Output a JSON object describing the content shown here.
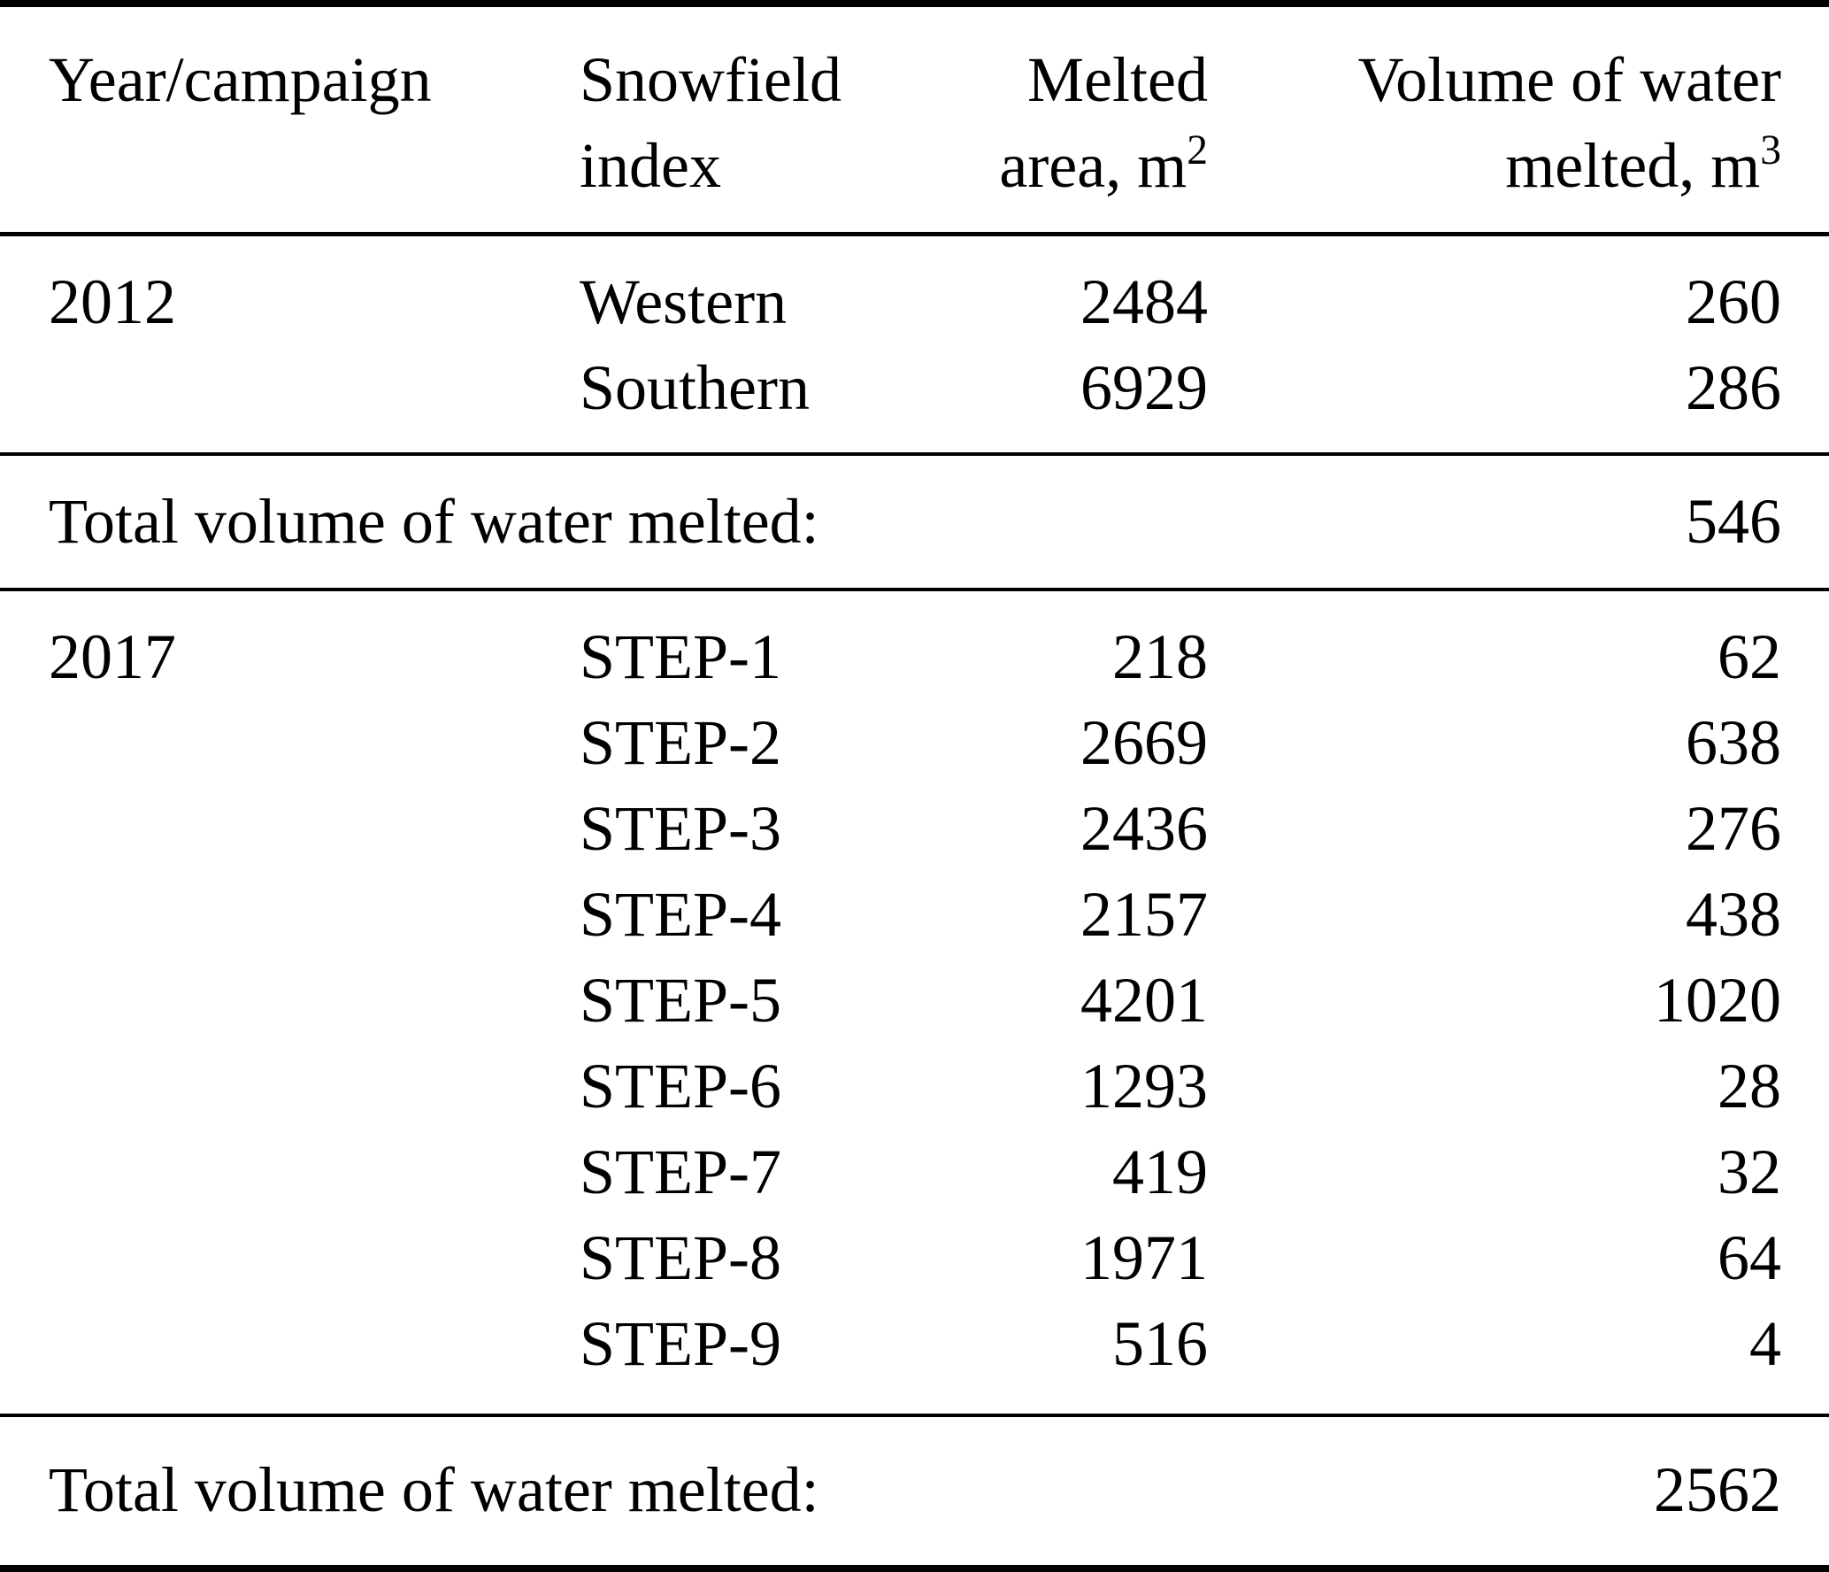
{
  "colors": {
    "text": "#000000",
    "background": "#ffffff",
    "rule": "#000000"
  },
  "header": {
    "year": "Year/campaign",
    "snowfield": {
      "line1": "Snowfield",
      "line2": "index"
    },
    "area": {
      "line1": "Melted",
      "line2": "area, m",
      "sup": "2"
    },
    "volume": {
      "line1": "Volume of water",
      "line2": "melted, m",
      "sup": "3"
    }
  },
  "sections": [
    {
      "year": "2012",
      "rows": [
        {
          "index": "Western",
          "area": "2484",
          "volume": "260"
        },
        {
          "index": "Southern",
          "area": "6929",
          "volume": "286"
        }
      ],
      "total": {
        "label": "Total volume of water melted:",
        "value": "546"
      }
    },
    {
      "year": "2017",
      "rows": [
        {
          "index": "STEP-1",
          "area": "218",
          "volume": "62"
        },
        {
          "index": "STEP-2",
          "area": "2669",
          "volume": "638"
        },
        {
          "index": "STEP-3",
          "area": "2436",
          "volume": "276"
        },
        {
          "index": "STEP-4",
          "area": "2157",
          "volume": "438"
        },
        {
          "index": "STEP-5",
          "area": "4201",
          "volume": "1020"
        },
        {
          "index": "STEP-6",
          "area": "1293",
          "volume": "28"
        },
        {
          "index": "STEP-7",
          "area": "419",
          "volume": "32"
        },
        {
          "index": "STEP-8",
          "area": "1971",
          "volume": "64"
        },
        {
          "index": "STEP-9",
          "area": "516",
          "volume": "4"
        }
      ],
      "total": {
        "label": "Total volume of water melted:",
        "value": "2562"
      }
    }
  ]
}
